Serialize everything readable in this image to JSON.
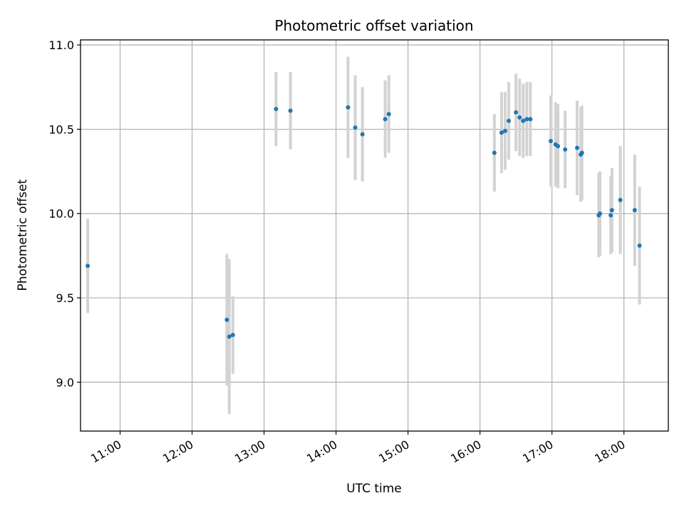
{
  "chart_data": {
    "type": "scatter",
    "title": "Photometric offset variation",
    "xlabel": "UTC time",
    "ylabel": "Photometric offset",
    "x_tick_labels": [
      "11:00",
      "12:00",
      "13:00",
      "14:00",
      "15:00",
      "16:00",
      "17:00",
      "18:00"
    ],
    "y_tick_labels": [
      "9.0",
      "9.5",
      "10.0",
      "10.5",
      "11.0"
    ],
    "xlim": [
      "10:27",
      "18:37"
    ],
    "ylim": [
      8.71,
      11.03
    ],
    "grid": true,
    "colors": {
      "points": "#1f77b4",
      "errorbars": "#d3d3d3",
      "grid": "#b0b0b0"
    },
    "series": [
      {
        "points": [
          {
            "x": "10:33",
            "y": 9.69,
            "err": 0.28
          },
          {
            "x": "12:29",
            "y": 9.37,
            "err": 0.39
          },
          {
            "x": "12:31",
            "y": 9.27,
            "err": 0.46
          },
          {
            "x": "12:34",
            "y": 9.28,
            "err": 0.23
          },
          {
            "x": "13:10",
            "y": 10.62,
            "err": 0.22
          },
          {
            "x": "13:22",
            "y": 10.61,
            "err": 0.23
          },
          {
            "x": "14:10",
            "y": 10.63,
            "err": 0.3
          },
          {
            "x": "14:16",
            "y": 10.51,
            "err": 0.31
          },
          {
            "x": "14:22",
            "y": 10.47,
            "err": 0.28
          },
          {
            "x": "14:41",
            "y": 10.56,
            "err": 0.23
          },
          {
            "x": "14:44",
            "y": 10.59,
            "err": 0.23
          },
          {
            "x": "16:12",
            "y": 10.36,
            "err": 0.23
          },
          {
            "x": "16:18",
            "y": 10.48,
            "err": 0.24
          },
          {
            "x": "16:21",
            "y": 10.49,
            "err": 0.23
          },
          {
            "x": "16:24",
            "y": 10.55,
            "err": 0.23
          },
          {
            "x": "16:30",
            "y": 10.6,
            "err": 0.23
          },
          {
            "x": "16:33",
            "y": 10.57,
            "err": 0.23
          },
          {
            "x": "16:36",
            "y": 10.55,
            "err": 0.22
          },
          {
            "x": "16:39",
            "y": 10.56,
            "err": 0.22
          },
          {
            "x": "16:42",
            "y": 10.56,
            "err": 0.22
          },
          {
            "x": "16:59",
            "y": 10.43,
            "err": 0.27
          },
          {
            "x": "17:03",
            "y": 10.41,
            "err": 0.25
          },
          {
            "x": "17:05",
            "y": 10.4,
            "err": 0.25
          },
          {
            "x": "17:11",
            "y": 10.38,
            "err": 0.23
          },
          {
            "x": "17:21",
            "y": 10.39,
            "err": 0.28
          },
          {
            "x": "17:24",
            "y": 10.35,
            "err": 0.28
          },
          {
            "x": "17:25",
            "y": 10.36,
            "err": 0.28
          },
          {
            "x": "17:39",
            "y": 9.99,
            "err": 0.25
          },
          {
            "x": "17:40",
            "y": 10.0,
            "err": 0.25
          },
          {
            "x": "17:49",
            "y": 9.99,
            "err": 0.23
          },
          {
            "x": "17:50",
            "y": 10.02,
            "err": 0.25
          },
          {
            "x": "17:57",
            "y": 10.08,
            "err": 0.32
          },
          {
            "x": "18:09",
            "y": 10.02,
            "err": 0.33
          },
          {
            "x": "18:13",
            "y": 9.81,
            "err": 0.35
          }
        ]
      }
    ]
  }
}
